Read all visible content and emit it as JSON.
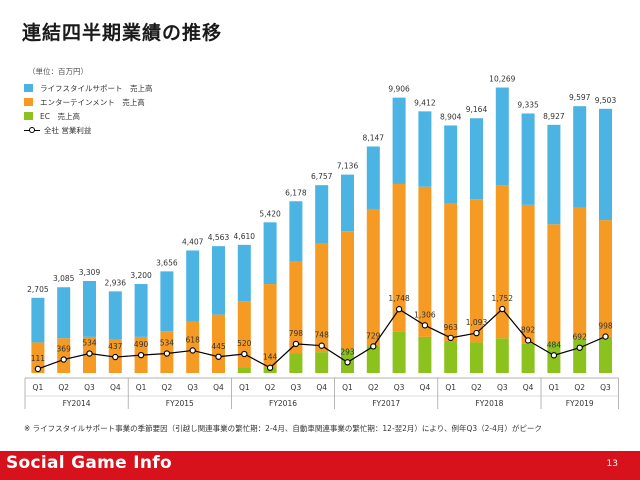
{
  "page": {
    "title": "連結四半期業績の推移",
    "unit": "（単位：百万円）",
    "note": "※ ライフスタイルサポート事業の季節要因（引越し関連事業の繁忙期：2-4月、自動車関連事業の繁忙期：12-翌2月）により、例年Q3（2-4月）がピーク",
    "brand": "Social Game Info",
    "page_number": "13"
  },
  "colors": {
    "lifestyle": "#4bb4e3",
    "entertainment": "#f59a23",
    "ec": "#8cc21d",
    "line": "#000000",
    "footer": "#d7121c"
  },
  "chart_data": {
    "type": "bar",
    "stacked": true,
    "legend": [
      "ライフスタイルサポート　売上高",
      "エンターテインメント　売上高",
      "EC　売上高",
      "全社 営業利益"
    ],
    "quarters": [
      "Q1",
      "Q2",
      "Q3",
      "Q4",
      "Q1",
      "Q2",
      "Q3",
      "Q4",
      "Q1",
      "Q2",
      "Q3",
      "Q4",
      "Q1",
      "Q2",
      "Q3",
      "Q4",
      "Q1",
      "Q2",
      "Q3",
      "Q4",
      "Q1",
      "Q2",
      "Q3"
    ],
    "fiscal_years": [
      {
        "label": "FY2014",
        "count": 4
      },
      {
        "label": "FY2015",
        "count": 4
      },
      {
        "label": "FY2016",
        "count": 4
      },
      {
        "label": "FY2017",
        "count": 4
      },
      {
        "label": "FY2018",
        "count": 4
      },
      {
        "label": "FY2019",
        "count": 3
      }
    ],
    "totals": [
      2705,
      3085,
      3309,
      2936,
      3200,
      3656,
      4407,
      4563,
      4610,
      5420,
      6178,
      6757,
      7136,
      8147,
      9906,
      9412,
      8904,
      9164,
      10269,
      9335,
      8927,
      9597,
      9503
    ],
    "series": [
      {
        "name": "EC　売上高",
        "values": [
          0,
          0,
          0,
          0,
          0,
          0,
          0,
          0,
          180,
          200,
          700,
          750,
          850,
          1000,
          1500,
          1300,
          1150,
          1100,
          1250,
          1050,
          1100,
          1250,
          1300
        ]
      },
      {
        "name": "エンターテインメント　売上高",
        "values": [
          1100,
          1250,
          1300,
          1200,
          1300,
          1500,
          1850,
          2100,
          2400,
          3000,
          3300,
          3900,
          4250,
          4900,
          5300,
          5400,
          4950,
          5150,
          5500,
          5000,
          4250,
          4700,
          4200
        ]
      },
      {
        "name": "ライフスタイルサポート　売上高",
        "values": [
          1605,
          1835,
          2009,
          1736,
          1900,
          2156,
          2557,
          2463,
          2030,
          2220,
          2178,
          2107,
          2036,
          2247,
          3106,
          2712,
          2804,
          2914,
          3519,
          3285,
          3577,
          3647,
          4003
        ]
      }
    ],
    "operating_profit": {
      "name": "全社 営業利益",
      "values": [
        111,
        369,
        534,
        437,
        490,
        534,
        618,
        445,
        520,
        144,
        798,
        748,
        293,
        729,
        1748,
        1306,
        963,
        1093,
        1752,
        892,
        484,
        692,
        998
      ]
    },
    "ylim": [
      0,
      11500
    ]
  }
}
